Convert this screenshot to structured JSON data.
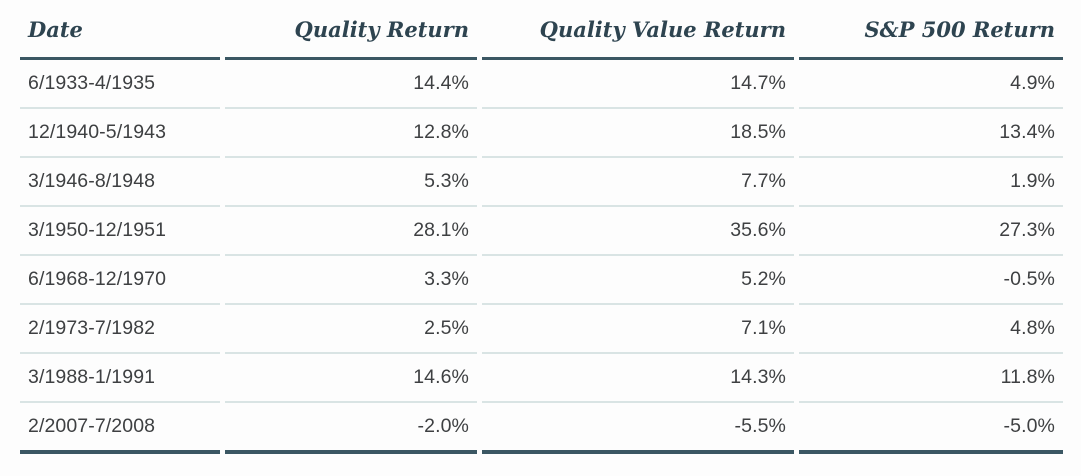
{
  "chart_data": {
    "type": "table",
    "title": "",
    "columns": [
      "Date",
      "Quality Return",
      "Quality Value Return",
      "S&P 500 Return"
    ],
    "rows": [
      [
        "6/1933-4/1935",
        "14.4%",
        "14.7%",
        "4.9%"
      ],
      [
        "12/1940-5/1943",
        "12.8%",
        "18.5%",
        "13.4%"
      ],
      [
        "3/1946-8/1948",
        "5.3%",
        "7.7%",
        "1.9%"
      ],
      [
        "3/1950-12/1951",
        "28.1%",
        "35.6%",
        "27.3%"
      ],
      [
        "6/1968-12/1970",
        "3.3%",
        "5.2%",
        "-0.5%"
      ],
      [
        "2/1973-7/1982",
        "2.5%",
        "7.1%",
        "4.8%"
      ],
      [
        "3/1988-1/1991",
        "14.6%",
        "14.3%",
        "11.8%"
      ],
      [
        "2/2007-7/2008",
        "-2.0%",
        "-5.5%",
        "-5.0%"
      ]
    ]
  },
  "colors": {
    "header_text": "#2e4450",
    "heavy_rule": "#3b5763",
    "light_rule": "#d9e4e4",
    "body_text": "#3e4042",
    "background": "#fdfdfd"
  }
}
